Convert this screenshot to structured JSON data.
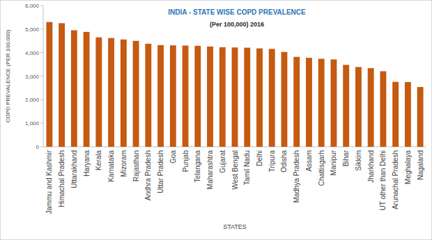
{
  "chart_data": {
    "type": "bar",
    "title": "INDIA - STATE WISE COPD PREVALENCE",
    "subtitle": "(Per 100,000) 2016",
    "x_label": "STATES",
    "y_label": "COPD PREVALENCE (PER 100,000)",
    "categories": [
      "Jammu and Kashmir",
      "Himachal Pradesh",
      "Uttarakhand",
      "Haryana",
      "Kerala",
      "Karnataka",
      "Mizoram",
      "Rajasthan",
      "Andhra Pradesh",
      "Uttar Pradesh",
      "Goa",
      "Punjab",
      "Telangana",
      "Maharashtra",
      "Gujarat",
      "West Bengal",
      "Tamil Nadu",
      "Delhi",
      "Tripura",
      "Odisha",
      "Madhya Pradesh",
      "Assam",
      "Chattisgarh",
      "Manipur",
      "Bihar",
      "Sikkim",
      "Jharkhand",
      "UT other than Delhi",
      "Arunachal Pradesh",
      "Meghalaya",
      "Nagaland"
    ],
    "values": [
      5300,
      5250,
      4950,
      4880,
      4650,
      4620,
      4560,
      4500,
      4380,
      4320,
      4310,
      4300,
      4290,
      4260,
      4230,
      4220,
      4210,
      4180,
      4160,
      4030,
      3820,
      3780,
      3740,
      3710,
      3480,
      3390,
      3340,
      3210,
      2760,
      2750,
      2540
    ],
    "color": "#c55a11",
    "ylim": [
      0,
      6000
    ],
    "yticks": [
      0,
      {
        "value": 1000,
        "label": "1,000"
      },
      {
        "value": 2000,
        "label": "2,000"
      },
      {
        "value": 3000,
        "label": "3,000"
      },
      {
        "value": 4000,
        "label": "4,000"
      },
      {
        "value": 5000,
        "label": "5,000"
      },
      {
        "value": 6000,
        "label": "6,000"
      }
    ],
    "grid": false
  }
}
